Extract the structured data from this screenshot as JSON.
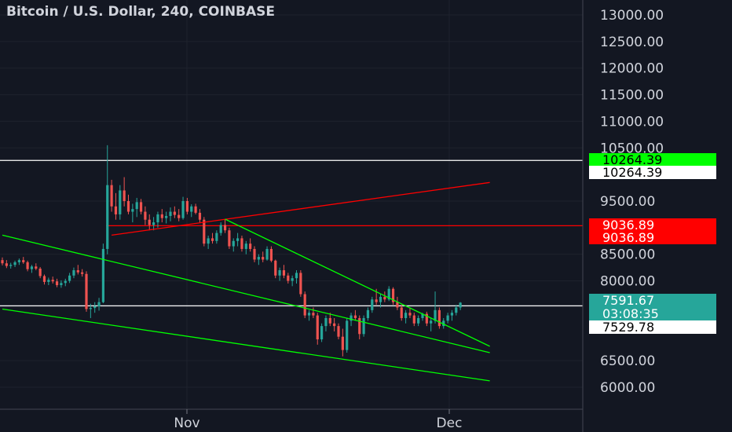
{
  "chart_data": {
    "type": "candlestick",
    "title": "Bitcoin / U.S. Dollar, 240, COINBASE",
    "x_ticks": [
      "Nov",
      "Dec"
    ],
    "y_ticks": [
      "13000.00",
      "12500.00",
      "12000.00",
      "11500.00",
      "11000.00",
      "10500.00",
      "9500.00",
      "8500.00",
      "8000.00",
      "7500.00",
      "6500.00",
      "6000.00"
    ],
    "ylim": [
      6000,
      13000
    ],
    "price_tags": [
      {
        "label": "10264.39",
        "bg": "#00ff00",
        "fg": "#000000"
      },
      {
        "label": "10264.39",
        "bg": "#ffffff",
        "fg": "#000000"
      },
      {
        "label": "9036.89",
        "bg": "#ff0000",
        "fg": "#ffffff"
      },
      {
        "label": "9036.89",
        "bg": "#ff0000",
        "fg": "#ffffff"
      },
      {
        "label": "7591.67",
        "bg": "#26a69a",
        "fg": "#ffffff"
      },
      {
        "label": "03:08:35",
        "bg": "#26a69a",
        "fg": "#ffffff"
      },
      {
        "label": "7529.78",
        "bg": "#ffffff",
        "fg": "#000000"
      }
    ],
    "horizontal_levels": [
      {
        "price": 10264.39,
        "color": "#ffffff"
      },
      {
        "price": 9036.89,
        "color": "#ff0000"
      },
      {
        "price": 7529.78,
        "color": "#ffffff"
      }
    ],
    "trendlines": [
      {
        "color": "#ff0000",
        "from": {
          "bar": 26,
          "price": 8860
        },
        "to": {
          "bar": 116,
          "price": 9850
        }
      },
      {
        "color": "#00ff00",
        "from": {
          "bar": 0,
          "price": 8860
        },
        "to": {
          "bar": 116,
          "price": 6650
        }
      },
      {
        "color": "#00ff00",
        "from": {
          "bar": 0,
          "price": 7470
        },
        "to": {
          "bar": 116,
          "price": 6120
        }
      },
      {
        "color": "#00ff00",
        "from": {
          "bar": 53,
          "price": 9160
        },
        "to": {
          "bar": 116,
          "price": 6770
        }
      }
    ],
    "ohlc": [
      [
        8390,
        8440,
        8290,
        8330
      ],
      [
        8330,
        8390,
        8240,
        8280
      ],
      [
        8280,
        8340,
        8230,
        8300
      ],
      [
        8300,
        8380,
        8260,
        8350
      ],
      [
        8350,
        8420,
        8300,
        8390
      ],
      [
        8390,
        8450,
        8320,
        8350
      ],
      [
        8350,
        8380,
        8180,
        8220
      ],
      [
        8220,
        8300,
        8150,
        8270
      ],
      [
        8270,
        8330,
        8200,
        8230
      ],
      [
        8230,
        8260,
        8050,
        8090
      ],
      [
        8090,
        8120,
        7930,
        7980
      ],
      [
        7980,
        8060,
        7920,
        8020
      ],
      [
        8020,
        8080,
        7950,
        7990
      ],
      [
        7990,
        8040,
        7880,
        7920
      ],
      [
        7920,
        8010,
        7870,
        7960
      ],
      [
        7960,
        8040,
        7900,
        8000
      ],
      [
        8000,
        8150,
        7960,
        8100
      ],
      [
        8100,
        8250,
        8050,
        8200
      ],
      [
        8200,
        8300,
        8120,
        8160
      ],
      [
        8160,
        8220,
        8080,
        8130
      ],
      [
        8130,
        8180,
        7420,
        7470
      ],
      [
        7470,
        7570,
        7300,
        7490
      ],
      [
        7490,
        7600,
        7400,
        7520
      ],
      [
        7520,
        7680,
        7440,
        7600
      ],
      [
        7600,
        8700,
        7580,
        8600
      ],
      [
        8600,
        10550,
        8500,
        9800
      ],
      [
        9800,
        9900,
        9300,
        9400
      ],
      [
        9400,
        9650,
        9150,
        9250
      ],
      [
        9250,
        9800,
        9150,
        9700
      ],
      [
        9700,
        9950,
        9400,
        9500
      ],
      [
        9500,
        9620,
        9250,
        9300
      ],
      [
        9300,
        9450,
        9100,
        9350
      ],
      [
        9350,
        9560,
        9200,
        9480
      ],
      [
        9480,
        9540,
        9250,
        9300
      ],
      [
        9300,
        9400,
        9050,
        9150
      ],
      [
        9150,
        9250,
        8950,
        9050
      ],
      [
        9050,
        9200,
        8950,
        9100
      ],
      [
        9100,
        9300,
        9000,
        9250
      ],
      [
        9250,
        9350,
        9100,
        9180
      ],
      [
        9180,
        9300,
        9080,
        9220
      ],
      [
        9220,
        9380,
        9120,
        9300
      ],
      [
        9300,
        9400,
        9180,
        9240
      ],
      [
        9240,
        9350,
        9120,
        9180
      ],
      [
        9180,
        9580,
        9150,
        9500
      ],
      [
        9500,
        9560,
        9250,
        9300
      ],
      [
        9300,
        9440,
        9200,
        9400
      ],
      [
        9400,
        9450,
        9250,
        9280
      ],
      [
        9280,
        9350,
        9100,
        9150
      ],
      [
        9150,
        9200,
        8650,
        8700
      ],
      [
        8700,
        8850,
        8600,
        8800
      ],
      [
        8800,
        8900,
        8700,
        8750
      ],
      [
        8750,
        8950,
        8700,
        8900
      ],
      [
        8900,
        9100,
        8850,
        9050
      ],
      [
        9050,
        9160,
        8900,
        8950
      ],
      [
        8950,
        9000,
        8600,
        8650
      ],
      [
        8650,
        8800,
        8550,
        8750
      ],
      [
        8750,
        8900,
        8650,
        8800
      ],
      [
        8800,
        8850,
        8550,
        8600
      ],
      [
        8600,
        8750,
        8500,
        8700
      ],
      [
        8700,
        8800,
        8550,
        8600
      ],
      [
        8600,
        8650,
        8350,
        8400
      ],
      [
        8400,
        8500,
        8300,
        8450
      ],
      [
        8450,
        8550,
        8350,
        8400
      ],
      [
        8400,
        8650,
        8380,
        8600
      ],
      [
        8600,
        8650,
        8350,
        8380
      ],
      [
        8380,
        8400,
        8050,
        8100
      ],
      [
        8100,
        8250,
        8000,
        8200
      ],
      [
        8200,
        8300,
        8050,
        8100
      ],
      [
        8100,
        8150,
        7950,
        8000
      ],
      [
        8000,
        8100,
        7900,
        8050
      ],
      [
        8050,
        8200,
        7950,
        8150
      ],
      [
        8150,
        8200,
        7700,
        7750
      ],
      [
        7750,
        7800,
        7300,
        7350
      ],
      [
        7350,
        7450,
        7250,
        7400
      ],
      [
        7400,
        7500,
        7300,
        7350
      ],
      [
        7350,
        7400,
        6800,
        6900
      ],
      [
        6900,
        7200,
        6850,
        7150
      ],
      [
        7150,
        7350,
        7050,
        7300
      ],
      [
        7300,
        7400,
        7150,
        7200
      ],
      [
        7200,
        7300,
        7050,
        7150
      ],
      [
        7150,
        7200,
        6900,
        6950
      ],
      [
        6950,
        7100,
        6580,
        6700
      ],
      [
        6700,
        7300,
        6650,
        7250
      ],
      [
        7250,
        7400,
        7150,
        7350
      ],
      [
        7350,
        7450,
        7250,
        7300
      ],
      [
        7300,
        7350,
        6900,
        7000
      ],
      [
        7000,
        7350,
        6950,
        7300
      ],
      [
        7300,
        7500,
        7250,
        7450
      ],
      [
        7450,
        7700,
        7400,
        7650
      ],
      [
        7650,
        7850,
        7550,
        7600
      ],
      [
        7600,
        7750,
        7500,
        7700
      ],
      [
        7700,
        7800,
        7600,
        7650
      ],
      [
        7650,
        7900,
        7620,
        7850
      ],
      [
        7850,
        7880,
        7550,
        7600
      ],
      [
        7600,
        7700,
        7450,
        7500
      ],
      [
        7500,
        7550,
        7250,
        7300
      ],
      [
        7300,
        7450,
        7200,
        7400
      ],
      [
        7400,
        7500,
        7300,
        7350
      ],
      [
        7350,
        7400,
        7150,
        7200
      ],
      [
        7200,
        7350,
        7150,
        7300
      ],
      [
        7300,
        7400,
        7250,
        7380
      ],
      [
        7380,
        7420,
        7150,
        7200
      ],
      [
        7200,
        7300,
        7050,
        7250
      ],
      [
        7250,
        7800,
        7200,
        7450
      ],
      [
        7450,
        7500,
        7100,
        7150
      ],
      [
        7150,
        7300,
        7100,
        7250
      ],
      [
        7250,
        7400,
        7200,
        7350
      ],
      [
        7350,
        7450,
        7250,
        7400
      ],
      [
        7400,
        7550,
        7350,
        7500
      ],
      [
        7500,
        7600,
        7450,
        7590
      ]
    ]
  }
}
